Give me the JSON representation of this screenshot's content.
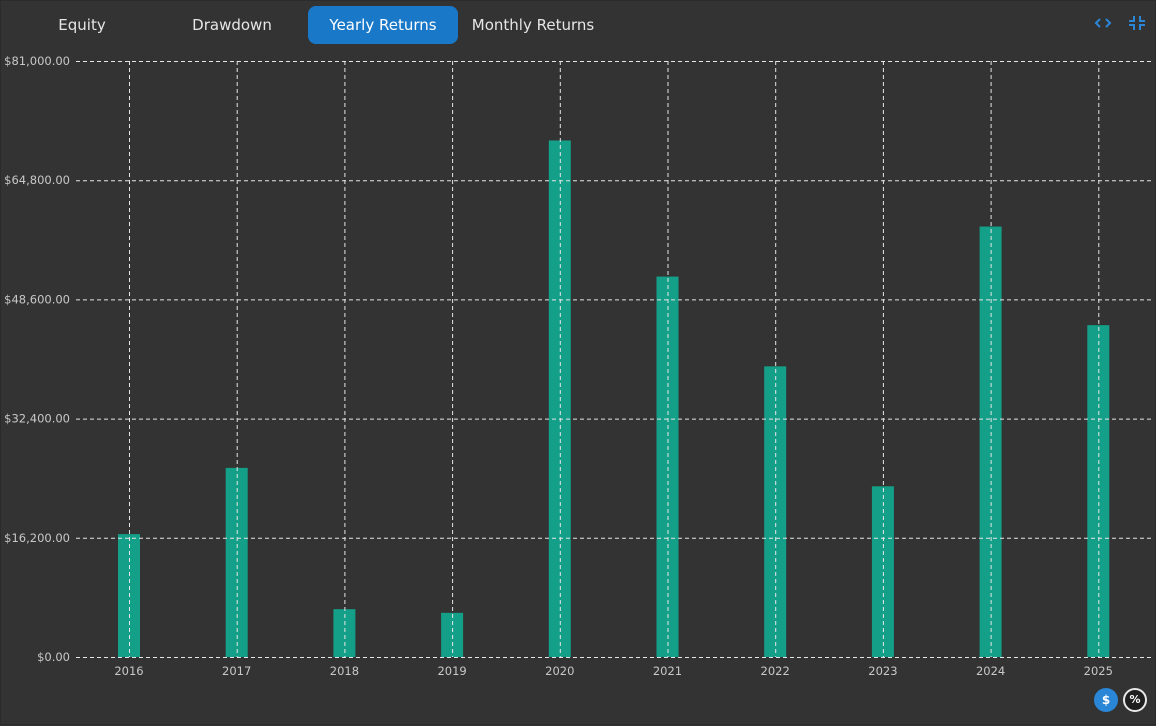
{
  "tabs": [
    {
      "label": "Equity",
      "active": false
    },
    {
      "label": "Drawdown",
      "active": false
    },
    {
      "label": "Yearly Returns",
      "active": true
    },
    {
      "label": "Monthly Returns",
      "active": false
    }
  ],
  "toolbar": {
    "icons": [
      "code-brackets-icon",
      "collapse-icon"
    ]
  },
  "mode_toggle": {
    "dollar_label": "$",
    "percent_label": "%",
    "selected": "dollar"
  },
  "colors": {
    "background": "#333333",
    "bar": "#14a088",
    "active_tab": "#1a78c8",
    "grid": "#e6e6e6",
    "text": "#c8c8c8"
  },
  "chart_data": {
    "type": "bar",
    "categories": [
      "2016",
      "2017",
      "2018",
      "2019",
      "2020",
      "2021",
      "2022",
      "2023",
      "2024",
      "2025"
    ],
    "values": [
      16700,
      25700,
      6500,
      6000,
      70200,
      51700,
      39500,
      23200,
      58500,
      45100
    ],
    "title": "",
    "xlabel": "",
    "ylabel": "",
    "ylim": [
      0,
      81000
    ],
    "yticks": [
      0,
      16200,
      32400,
      48600,
      64800,
      81000
    ],
    "ytick_labels": [
      "$0.00",
      "$16,200.00",
      "$32,400.00",
      "$48,600.00",
      "$64,800.00",
      "$81,000.00"
    ],
    "grid": true,
    "legend": "none"
  }
}
